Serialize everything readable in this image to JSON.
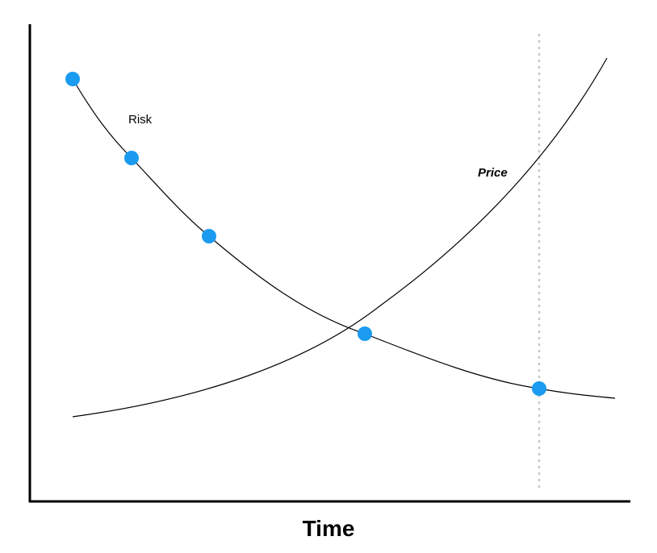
{
  "labels": {
    "risk": "Risk",
    "price": "Price",
    "x_axis": "Time"
  }
}
